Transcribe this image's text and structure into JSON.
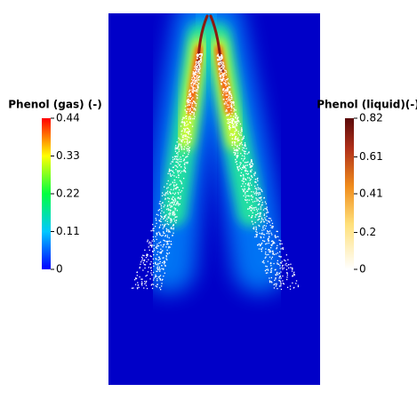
{
  "legends": [
    {
      "title": "Phenol (gas) (-)",
      "range": [
        0,
        0.44
      ],
      "ticks": [
        0.44,
        0.33,
        0.22,
        0.11,
        0
      ]
    },
    {
      "title": "Phenol (liquid)(-)",
      "range": [
        0,
        0.82
      ],
      "ticks": [
        0.82,
        0.61,
        0.41,
        0.2,
        0
      ]
    }
  ]
}
